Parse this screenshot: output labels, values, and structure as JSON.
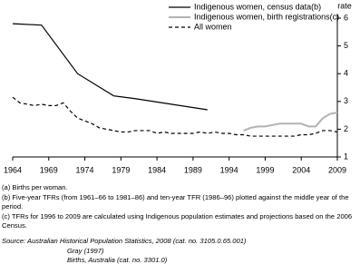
{
  "chart_data": {
    "type": "line",
    "y_label": "rate",
    "xlim": [
      1964,
      2009
    ],
    "xticks": [
      1964,
      1969,
      1974,
      1979,
      1984,
      1989,
      1994,
      1999,
      2004,
      2009
    ],
    "ylim": [
      1,
      6
    ],
    "yticks": [
      1,
      2,
      3,
      4,
      5,
      6
    ],
    "grid": false,
    "legend": "top",
    "series": [
      {
        "name": "Indigenous women, census data(b)",
        "color": "#000000",
        "style": "solid",
        "x": [
          1964,
          1968,
          1973,
          1978,
          1981,
          1986,
          1991
        ],
        "values": [
          5.8,
          5.75,
          4.0,
          3.2,
          3.1,
          2.9,
          2.7
        ]
      },
      {
        "name": "Indigenous women, birth registrations(c)",
        "color": "#b3b3b3",
        "style": "solid",
        "x": [
          1996,
          1997,
          1998,
          1999,
          2000,
          2001,
          2002,
          2003,
          2004,
          2005,
          2006,
          2007,
          2008,
          2009
        ],
        "values": [
          1.95,
          2.05,
          2.1,
          2.1,
          2.15,
          2.2,
          2.2,
          2.2,
          2.2,
          2.1,
          2.1,
          2.4,
          2.55,
          2.6
        ]
      },
      {
        "name": "All women",
        "color": "#000000",
        "style": "dashed",
        "x": [
          1964,
          1965,
          1966,
          1967,
          1968,
          1969,
          1970,
          1971,
          1972,
          1973,
          1974,
          1975,
          1976,
          1977,
          1978,
          1979,
          1980,
          1981,
          1982,
          1983,
          1984,
          1985,
          1986,
          1987,
          1988,
          1989,
          1990,
          1991,
          1992,
          1993,
          1994,
          1995,
          1996,
          1997,
          1998,
          1999,
          2000,
          2001,
          2002,
          2003,
          2004,
          2005,
          2006,
          2007,
          2008,
          2009
        ],
        "values": [
          3.15,
          2.95,
          2.9,
          2.85,
          2.9,
          2.85,
          2.85,
          2.95,
          2.65,
          2.4,
          2.3,
          2.2,
          2.05,
          2.0,
          1.95,
          1.9,
          1.9,
          1.95,
          1.95,
          1.95,
          1.85,
          1.9,
          1.85,
          1.85,
          1.85,
          1.85,
          1.9,
          1.85,
          1.9,
          1.85,
          1.85,
          1.8,
          1.8,
          1.75,
          1.75,
          1.75,
          1.75,
          1.75,
          1.75,
          1.75,
          1.8,
          1.8,
          1.85,
          1.95,
          1.95,
          1.9
        ]
      }
    ],
    "notes": [
      "(a) Births per woman.",
      "(b) Five-year TFRs (from 1961–66 to 1981–86) and ten-year TFR (1986–96) plotted against the middle year of the period.",
      "(c) TFRs for 1996 to 2009 are calculated using Indigenous population estimates and projections based on the 2006 Census."
    ],
    "source": [
      "Source: Australian Historical Population Statistics, 2008 (cat. no. 3105.0.65.001)",
      "Gray (1997)",
      "Births, Australia (cat. no. 3301.0)"
    ]
  }
}
